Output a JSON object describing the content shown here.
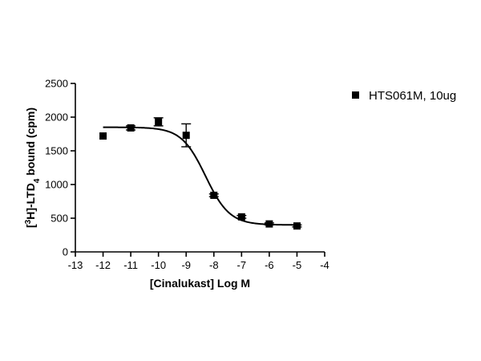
{
  "chart_data": {
    "type": "scatter",
    "title": "",
    "xlabel": "[Cinalukast] Log M",
    "ylabel": {
      "prefix": "[",
      "sup": "3",
      "mid": "H]-LTD",
      "sub": "4",
      "suffix": " bound (cpm)"
    },
    "xlim": [
      -13,
      -4
    ],
    "ylim": [
      0,
      2500
    ],
    "x_ticks": [
      -13,
      -12,
      -11,
      -10,
      -9,
      -8,
      -7,
      -6,
      -5,
      -4
    ],
    "y_ticks": [
      0,
      500,
      1000,
      1500,
      2000,
      2500
    ],
    "grid": false,
    "legend_position": "top-right",
    "series": [
      {
        "name": "HTS061M, 10ug",
        "marker": "square",
        "color": "#000000",
        "points": [
          {
            "x": -12,
            "y": 1720,
            "err": 0
          },
          {
            "x": -11,
            "y": 1840,
            "err": 30
          },
          {
            "x": -10,
            "y": 1930,
            "err": 60
          },
          {
            "x": -9,
            "y": 1730,
            "err": 170
          },
          {
            "x": -8,
            "y": 840,
            "err": 20
          },
          {
            "x": -7,
            "y": 520,
            "err": 20
          },
          {
            "x": -6,
            "y": 415,
            "err": 15
          },
          {
            "x": -5,
            "y": 385,
            "err": 15
          }
        ],
        "fit": {
          "model": "sigmoidal dose-response",
          "top": 1850,
          "bottom": 400,
          "log_ec50": -8.3,
          "hill_slope": 1.0
        }
      }
    ]
  }
}
